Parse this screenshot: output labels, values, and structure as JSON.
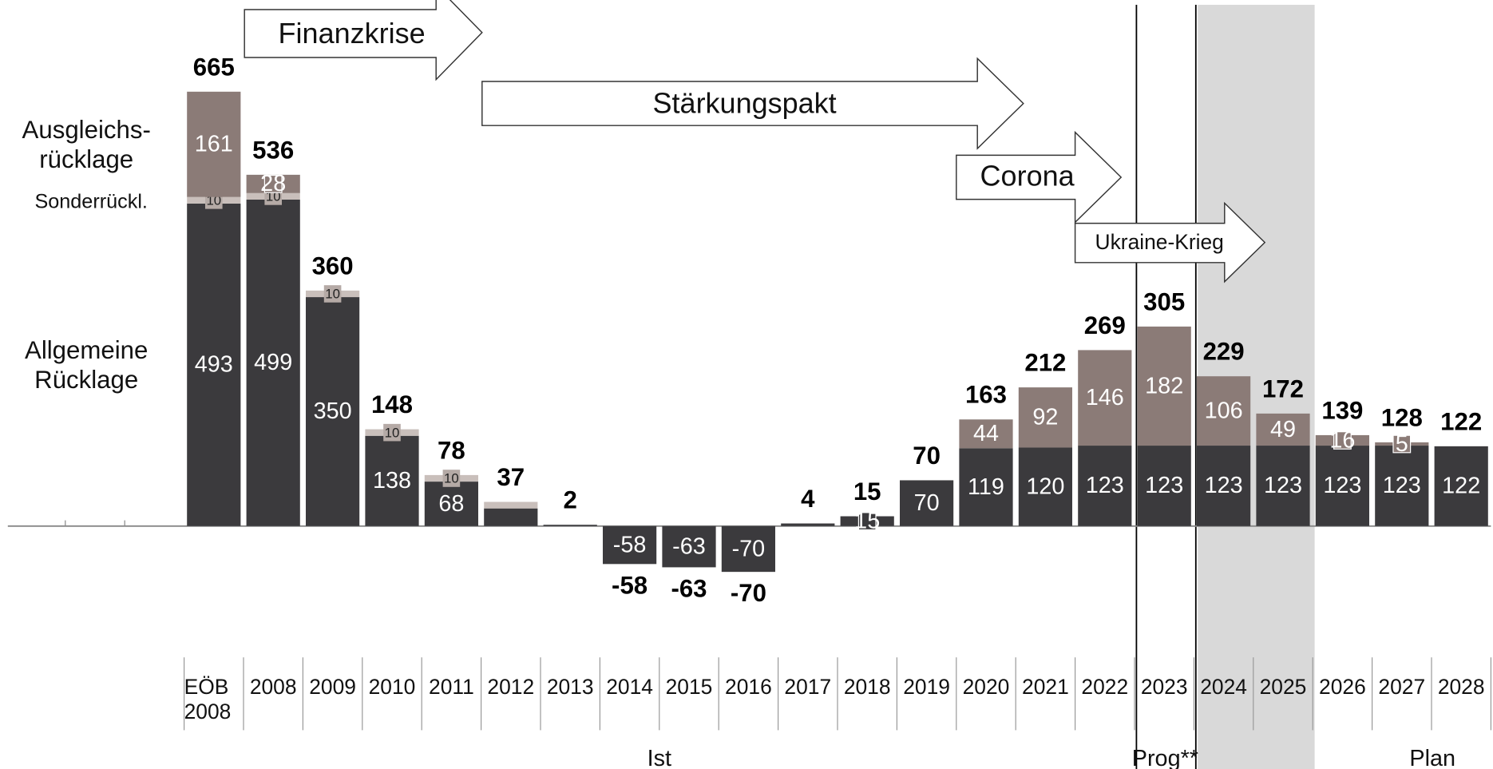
{
  "chart_data": {
    "type": "stacked_bar",
    "categories": [
      "EÖB\n2008",
      "2008",
      "2009",
      "2010",
      "2011",
      "2012",
      "2013",
      "2014",
      "2015",
      "2016",
      "2017",
      "2018",
      "2019",
      "2020",
      "2021",
      "2022",
      "2023",
      "2024",
      "2025",
      "2026",
      "2027",
      "2028"
    ],
    "series": [
      {
        "name": "Allgemeine\nRücklage",
        "color": "#3b3a3d",
        "values": [
          493,
          499,
          350,
          138,
          68,
          27,
          2,
          -58,
          -63,
          -70,
          4,
          15,
          70,
          119,
          120,
          123,
          123,
          123,
          123,
          123,
          123,
          122
        ],
        "value_labels": [
          "493",
          "499",
          "350",
          "138",
          "68",
          null,
          null,
          "-58",
          "-63",
          "-70",
          null,
          "15",
          "70",
          "119",
          "120",
          "123",
          "123",
          "123",
          "123",
          "123",
          "123",
          "122"
        ]
      },
      {
        "name": "Sonderrückl.",
        "color": "#c9bfbb",
        "values": [
          10,
          10,
          10,
          10,
          10,
          10,
          0,
          0,
          0,
          0,
          0,
          0,
          0,
          0,
          0,
          0,
          0,
          0,
          0,
          0,
          0,
          0
        ],
        "value_labels": [
          "10",
          "10",
          "10",
          "10",
          "10",
          null,
          null,
          null,
          null,
          null,
          null,
          null,
          null,
          null,
          null,
          null,
          null,
          null,
          null,
          null,
          null,
          null
        ]
      },
      {
        "name": "Ausgleichs-\nrücklage",
        "color": "#8b7b77",
        "values": [
          161,
          28,
          0,
          0,
          0,
          0,
          0,
          0,
          0,
          0,
          0,
          0,
          0,
          44,
          92,
          146,
          182,
          106,
          49,
          16,
          5,
          0
        ],
        "value_labels": [
          "161",
          "28",
          null,
          null,
          null,
          null,
          null,
          null,
          null,
          null,
          null,
          null,
          null,
          "44",
          "92",
          "146",
          "182",
          "106",
          "49",
          "16",
          "5",
          null
        ]
      }
    ],
    "totals": [
      665,
      536,
      360,
      148,
      78,
      37,
      2,
      -58,
      -63,
      -70,
      4,
      15,
      70,
      163,
      212,
      269,
      305,
      229,
      172,
      139,
      128,
      122
    ],
    "annotations": [
      "Finanzkrise",
      "Stärkungspakt",
      "Corona",
      "Ukraine-Krieg"
    ],
    "periods": [
      "Ist",
      "Prog**",
      "Plan"
    ]
  }
}
